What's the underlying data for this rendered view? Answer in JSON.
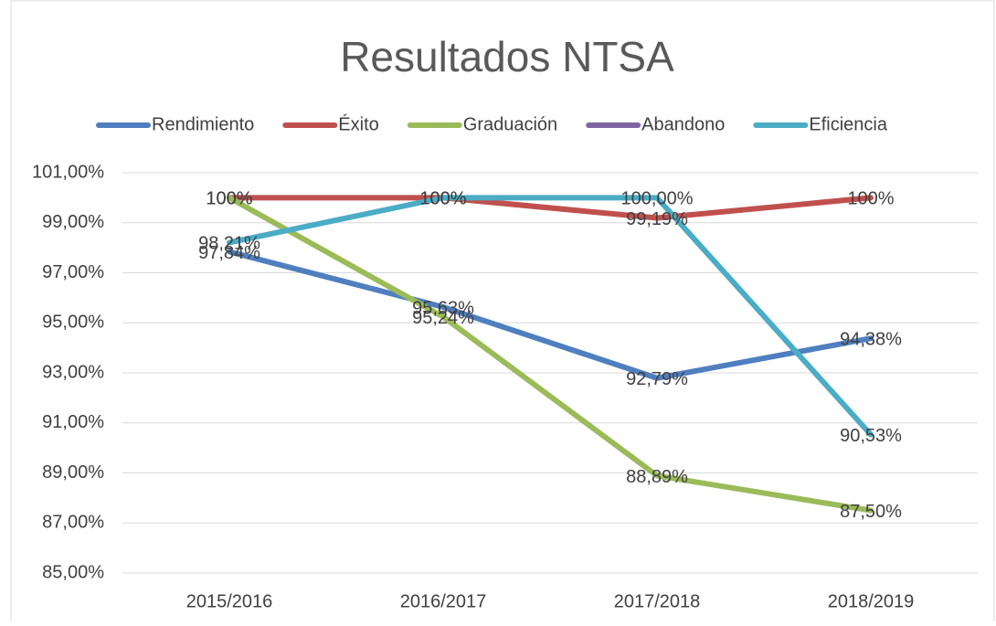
{
  "chart_data": {
    "type": "line",
    "title": "Resultados NTSA",
    "categories": [
      "2015/2016",
      "2016/2017",
      "2017/2018",
      "2018/2019"
    ],
    "series": [
      {
        "name": "Rendimiento",
        "color": "#4f7fbf",
        "values": [
          97.84,
          95.63,
          92.79,
          94.38
        ],
        "value_labels": [
          "97,84%",
          "95,63%",
          "92,79%",
          "94,38%"
        ]
      },
      {
        "name": "Éxito",
        "color": "#c0504d",
        "values": [
          100,
          100,
          99.19,
          100
        ],
        "value_labels": [
          "100%",
          "100%",
          "99,19%",
          "100%"
        ]
      },
      {
        "name": "Graduación",
        "color": "#9bbb59",
        "values": [
          100,
          95.24,
          88.89,
          87.5
        ],
        "value_labels": [
          "100%",
          "95,24%",
          "88,89%",
          "87,50%"
        ]
      },
      {
        "name": "Abandono",
        "color": "#8064a2",
        "values": [
          null,
          null,
          null,
          null
        ]
      },
      {
        "name": "Eficiencia",
        "color": "#4bacc6",
        "values": [
          98.21,
          100,
          100,
          90.53
        ],
        "value_labels": [
          "98,21%",
          "100%",
          "100,00%",
          "90,53%"
        ]
      }
    ],
    "ylim": [
      85,
      101
    ],
    "yticks": [
      {
        "value": 85,
        "label": "85,00%"
      },
      {
        "value": 87,
        "label": "87,00%"
      },
      {
        "value": 89,
        "label": "89,00%"
      },
      {
        "value": 91,
        "label": "91,00%"
      },
      {
        "value": 93,
        "label": "93,00%"
      },
      {
        "value": 95,
        "label": "95,00%"
      },
      {
        "value": 97,
        "label": "97,00%"
      },
      {
        "value": 99,
        "label": "99,00%"
      },
      {
        "value": 101,
        "label": "101,00%"
      }
    ],
    "grid": true,
    "legend": "top"
  }
}
